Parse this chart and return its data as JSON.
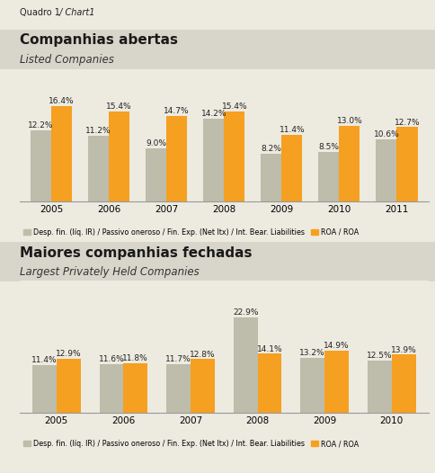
{
  "chart1": {
    "title": "Companhias abertas",
    "subtitle": "Listed Companies",
    "years": [
      "2005",
      "2006",
      "2007",
      "2008",
      "2009",
      "2010",
      "2011"
    ],
    "desp": [
      12.2,
      11.2,
      9.0,
      14.2,
      8.2,
      8.5,
      10.6
    ],
    "roa": [
      16.4,
      15.4,
      14.7,
      15.4,
      11.4,
      13.0,
      12.7
    ]
  },
  "chart2": {
    "title": "Maiores companhias fechadas",
    "subtitle": "Largest Privately Held Companies",
    "years": [
      "2005",
      "2006",
      "2007",
      "2008",
      "2009",
      "2010"
    ],
    "desp": [
      11.4,
      11.6,
      11.7,
      22.9,
      13.2,
      12.5
    ],
    "roa": [
      12.9,
      11.8,
      12.8,
      14.1,
      14.9,
      13.9
    ]
  },
  "legend_desp_bold": "Desp. fin. (líq. IR) / Passivo oneroso",
  "legend_desp_italic": " / Fin. Exp. (Net Itx) / Int. Bear. Liabilities",
  "legend_roa_bold": "ROA",
  "legend_roa_italic": " / ROA",
  "quadro_label_bold": "Quadro 1",
  "quadro_label_italic": " / Chart1",
  "color_desp": "#BEBCAA",
  "color_roa": "#F5A020",
  "bg_color": "#EDEAE0",
  "header_color": "#D8D5CB",
  "bar_label_fontsize": 6.5,
  "tick_fontsize": 7.5,
  "legend_fontsize": 5.8,
  "title_fontsize": 11,
  "subtitle_fontsize": 8.5,
  "quadro_fontsize": 7
}
